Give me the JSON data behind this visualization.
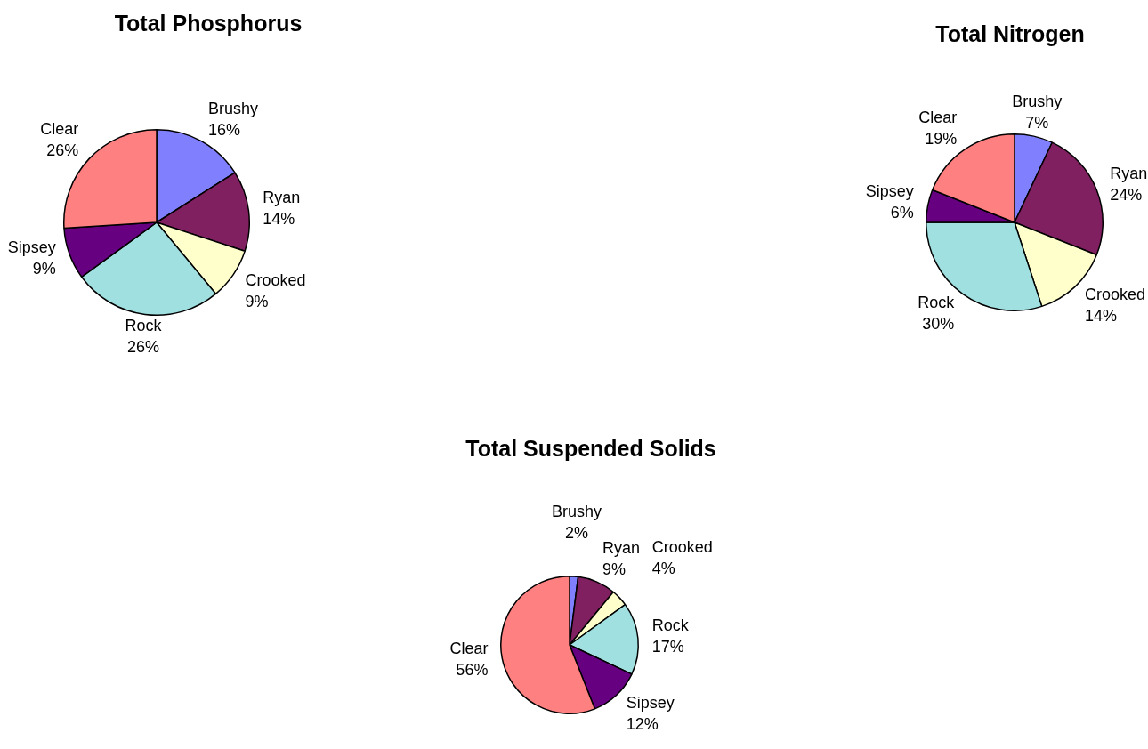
{
  "chart_data": [
    {
      "type": "pie",
      "title": "Total Phosphorus",
      "categories": [
        "Brushy",
        "Ryan",
        "Crooked",
        "Rock",
        "Sipsey",
        "Clear"
      ],
      "values": [
        16,
        14,
        9,
        26,
        9,
        26
      ],
      "value_labels": [
        "16%",
        "14%",
        "9%",
        "26%",
        "9%",
        "26%"
      ],
      "colors": [
        "#8080ff",
        "#802060",
        "#ffffcc",
        "#a0e0e0",
        "#660080",
        "#ff8080"
      ],
      "legend": false
    },
    {
      "type": "pie",
      "title": "Total Nitrogen",
      "categories": [
        "Brushy",
        "Ryan",
        "Crooked",
        "Rock",
        "Sipsey",
        "Clear"
      ],
      "values": [
        7,
        24,
        14,
        30,
        6,
        19
      ],
      "value_labels": [
        "7%",
        "24%",
        "14%",
        "30%",
        "6%",
        "19%"
      ],
      "colors": [
        "#8080ff",
        "#802060",
        "#ffffcc",
        "#a0e0e0",
        "#660080",
        "#ff8080"
      ],
      "legend": false
    },
    {
      "type": "pie",
      "title": "Total Suspended Solids",
      "categories": [
        "Brushy",
        "Ryan",
        "Crooked",
        "Rock",
        "Sipsey",
        "Clear"
      ],
      "values": [
        2,
        9,
        4,
        17,
        12,
        56
      ],
      "value_labels": [
        "2%",
        "9%",
        "4%",
        "17%",
        "12%",
        "56%"
      ],
      "colors": [
        "#8080ff",
        "#802060",
        "#ffffcc",
        "#a0e0e0",
        "#660080",
        "#ff8080"
      ],
      "legend": false
    }
  ]
}
